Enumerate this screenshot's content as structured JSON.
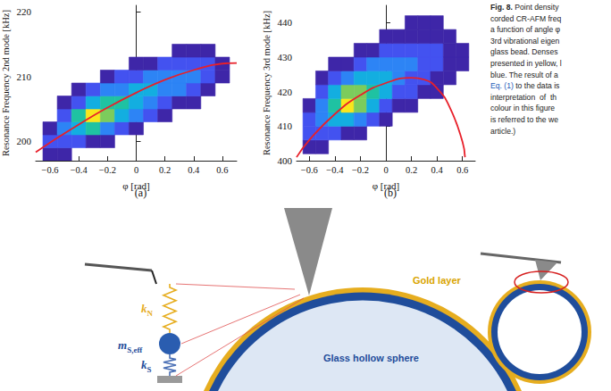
{
  "chart_data": [
    {
      "type": "heatmap",
      "label": "(a)",
      "xlabel": "φ [rad]",
      "ylabel": "Resonance Frequency 2nd mode [kHz]",
      "xlim": [
        -0.7,
        0.7
      ],
      "xticks": [
        {
          "value": -0.6,
          "label": "−0.6"
        },
        {
          "value": -0.4,
          "label": "−0.4"
        },
        {
          "value": -0.2,
          "label": "−0.2"
        },
        0,
        0.2,
        0.4,
        0.6
      ],
      "ylim": [
        197,
        221
      ],
      "yticks": [
        200,
        210,
        220
      ],
      "grid": false,
      "density": {
        "x_bins": [
          -0.65,
          -0.55,
          -0.45,
          -0.35,
          -0.25,
          -0.15,
          -0.05,
          0.05,
          0.15,
          0.25,
          0.35,
          0.45,
          0.55,
          0.65
        ],
        "y_bins": [
          197,
          199,
          201,
          203,
          205,
          207,
          209,
          211,
          213,
          215
        ],
        "levels": [
          [
            1,
            1,
            0,
            0,
            0,
            0,
            0,
            0,
            0,
            0,
            0,
            0,
            0
          ],
          [
            2,
            2,
            2,
            1,
            1,
            0,
            0,
            0,
            0,
            0,
            0,
            0,
            0
          ],
          [
            1,
            3,
            4,
            5,
            3,
            2,
            1,
            0,
            0,
            0,
            0,
            0,
            0
          ],
          [
            0,
            2,
            5,
            8,
            6,
            4,
            3,
            2,
            1,
            0,
            0,
            0,
            0
          ],
          [
            0,
            1,
            2,
            4,
            5,
            5,
            4,
            3,
            2,
            1,
            1,
            0,
            0
          ],
          [
            0,
            0,
            1,
            2,
            3,
            3,
            4,
            4,
            3,
            3,
            2,
            1,
            0
          ],
          [
            0,
            0,
            0,
            0,
            1,
            2,
            2,
            3,
            3,
            3,
            3,
            2,
            1
          ],
          [
            0,
            0,
            0,
            0,
            0,
            0,
            1,
            1,
            2,
            2,
            2,
            2,
            1
          ],
          [
            0,
            0,
            0,
            0,
            0,
            0,
            0,
            0,
            0,
            1,
            1,
            1,
            0
          ]
        ]
      },
      "density_range": [
        0,
        8
      ],
      "fit": {
        "x": [
          -0.7,
          -0.6,
          -0.4,
          -0.2,
          0,
          0.2,
          0.4,
          0.6,
          0.7
        ],
        "values": [
          198.3,
          199.8,
          202.6,
          205.2,
          207.5,
          209.5,
          211.0,
          212.0,
          212.1
        ],
        "color": "#e8202a"
      }
    },
    {
      "type": "heatmap",
      "label": "(b)",
      "xlabel": "φ [rad]",
      "ylabel": "Resonance Frequency 3rd mode [kHz]",
      "xlim": [
        -0.7,
        0.7
      ],
      "xticks": [
        {
          "value": -0.6,
          "label": "−0.6"
        },
        {
          "value": -0.4,
          "label": "−0.4"
        },
        {
          "value": -0.2,
          "label": "−0.2"
        },
        0,
        0.2,
        0.4,
        0.6
      ],
      "ylim": [
        400,
        445
      ],
      "yticks": [
        400,
        410,
        420,
        430,
        440
      ],
      "grid": false,
      "density": {
        "x_bins": [
          -0.65,
          -0.55,
          -0.45,
          -0.35,
          -0.25,
          -0.15,
          -0.05,
          0.05,
          0.15,
          0.25,
          0.35,
          0.45,
          0.55,
          0.65
        ],
        "y_bins": [
          402,
          406,
          410,
          414,
          418,
          422,
          426,
          430,
          434,
          438,
          442
        ],
        "levels": [
          [
            1,
            1,
            0,
            0,
            0,
            0,
            0,
            0,
            0,
            0,
            0,
            0,
            0
          ],
          [
            2,
            2,
            2,
            1,
            1,
            0,
            0,
            0,
            0,
            0,
            0,
            0,
            0
          ],
          [
            2,
            3,
            4,
            4,
            3,
            2,
            1,
            0,
            0,
            0,
            0,
            0,
            0
          ],
          [
            1,
            3,
            5,
            8,
            6,
            4,
            2,
            1,
            1,
            0,
            0,
            0,
            0
          ],
          [
            0,
            2,
            4,
            6,
            6,
            5,
            4,
            2,
            2,
            1,
            1,
            0,
            0
          ],
          [
            0,
            1,
            2,
            3,
            4,
            4,
            4,
            3,
            2,
            2,
            1,
            1,
            0
          ],
          [
            0,
            0,
            1,
            1,
            2,
            3,
            3,
            3,
            3,
            2,
            2,
            1,
            1
          ],
          [
            0,
            0,
            0,
            0,
            1,
            1,
            2,
            2,
            2,
            2,
            2,
            1,
            1
          ],
          [
            0,
            0,
            0,
            0,
            0,
            0,
            1,
            1,
            1,
            1,
            1,
            1,
            0
          ],
          [
            0,
            0,
            0,
            0,
            0,
            0,
            0,
            0,
            1,
            1,
            1,
            0,
            0
          ]
        ]
      },
      "density_range": [
        0,
        8
      ],
      "fit": {
        "x": [
          -0.7,
          -0.6,
          -0.4,
          -0.2,
          0,
          0.2,
          0.3,
          0.4,
          0.5,
          0.6,
          0.62
        ],
        "values": [
          401,
          406,
          413.5,
          419,
          422.5,
          424,
          423.5,
          421,
          415.5,
          405.5,
          401
        ],
        "color": "#e8202a"
      }
    }
  ],
  "caption": {
    "label": "Fig. 8.",
    "lines": [
      {
        "text": "Point density"
      },
      {
        "text": "corded CR-AFM freq"
      },
      {
        "text": "a function of angle φ"
      },
      {
        "text": "3rd vibrational eigen"
      },
      {
        "text": "glass bead. Denses"
      },
      {
        "text": "presented in yellow, l"
      },
      {
        "text": "blue. The result of a"
      },
      {
        "link": "Eq. (1)",
        "text": "to the data is"
      },
      {
        "text": "interpretation  of  th"
      },
      {
        "text": "colour in this figure"
      },
      {
        "text": "is referred to the we"
      },
      {
        "text": "article.)"
      }
    ]
  },
  "diagram": {
    "spring_model": [
      {
        "symbol": "k",
        "subscript": "N"
      },
      {
        "symbol": "m",
        "subscript": "S,eff"
      },
      {
        "symbol": "k",
        "subscript": "S"
      }
    ],
    "labels": {
      "gold_layer": "Gold layer",
      "shell": "Glass hollow sphere"
    }
  }
}
